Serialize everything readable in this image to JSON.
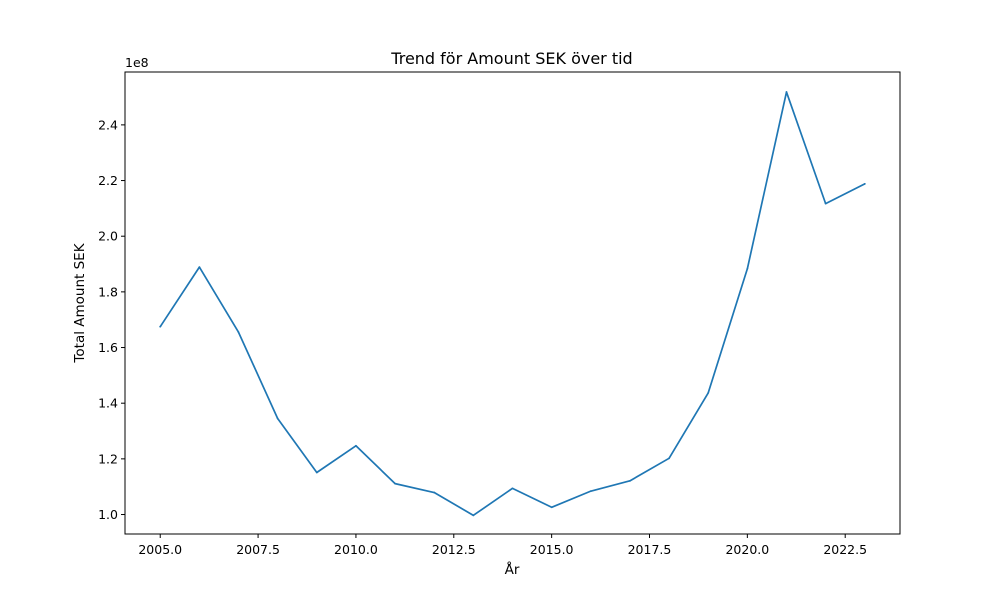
{
  "chart_data": {
    "type": "line",
    "title": "Trend för Amount SEK över tid",
    "xlabel": "År",
    "ylabel": "Total Amount SEK",
    "y_offset_label": "1e8",
    "xlim": [
      2004.1,
      2023.9
    ],
    "ylim": [
      0.93,
      2.59
    ],
    "y_scale_factor": 100000000,
    "x_ticks": [
      {
        "value": 2005.0,
        "label": "2005.0"
      },
      {
        "value": 2007.5,
        "label": "2007.5"
      },
      {
        "value": 2010.0,
        "label": "2010.0"
      },
      {
        "value": 2012.5,
        "label": "2012.5"
      },
      {
        "value": 2015.0,
        "label": "2015.0"
      },
      {
        "value": 2017.5,
        "label": "2017.5"
      },
      {
        "value": 2020.0,
        "label": "2020.0"
      },
      {
        "value": 2022.5,
        "label": "2022.5"
      }
    ],
    "y_ticks": [
      {
        "value": 1.0,
        "label": "1.0"
      },
      {
        "value": 1.2,
        "label": "1.2"
      },
      {
        "value": 1.4,
        "label": "1.4"
      },
      {
        "value": 1.6,
        "label": "1.6"
      },
      {
        "value": 1.8,
        "label": "1.8"
      },
      {
        "value": 2.0,
        "label": "2.0"
      },
      {
        "value": 2.2,
        "label": "2.2"
      },
      {
        "value": 2.4,
        "label": "2.4"
      }
    ],
    "grid": false,
    "series": [
      {
        "color": "#1f77b4",
        "x": [
          2005,
          2006,
          2007,
          2008,
          2009,
          2010,
          2011,
          2012,
          2013,
          2014,
          2015,
          2016,
          2017,
          2018,
          2019,
          2020,
          2021,
          2022,
          2023
        ],
        "y": [
          1.675,
          1.889,
          1.655,
          1.345,
          1.151,
          1.247,
          1.111,
          1.079,
          0.997,
          1.094,
          1.026,
          1.084,
          1.121,
          1.202,
          1.437,
          1.883,
          2.518,
          2.117,
          2.188
        ]
      }
    ]
  }
}
